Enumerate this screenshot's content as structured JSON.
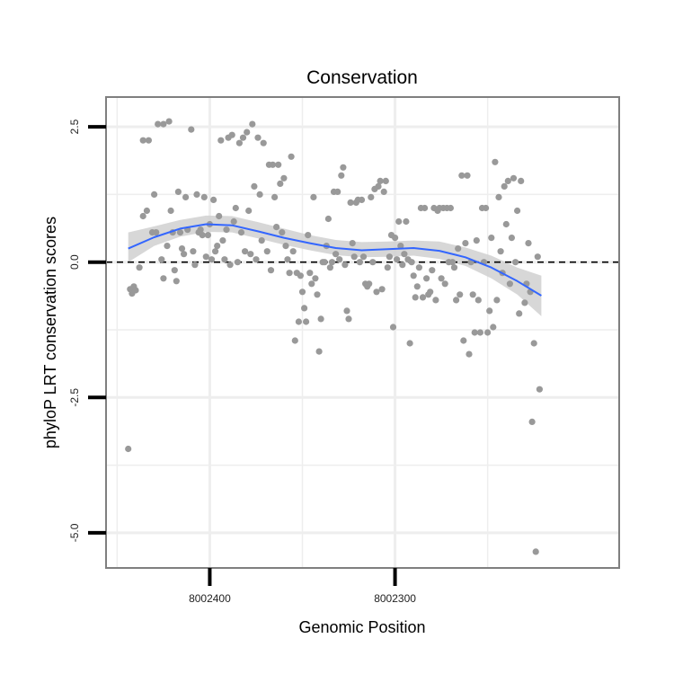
{
  "chart_data": {
    "type": "scatter",
    "title": "Conservation",
    "xlabel": "Genomic Position",
    "ylabel": "phyloP LRT conservation scores",
    "x_reversed": true,
    "xlim": [
      8002456,
      8002179
    ],
    "ylim": [
      -5.65,
      3.05
    ],
    "x_ticks": [
      8002400,
      8002300
    ],
    "x_tick_labels": [
      "8002400",
      "8002300"
    ],
    "y_ticks": [
      2.5,
      0.0,
      -2.5,
      -5.0
    ],
    "y_tick_labels": [
      "2.5",
      "0.0",
      "-2.5",
      "-5.0"
    ],
    "x_minor_gridlines": [
      8002450,
      8002350,
      8002250
    ],
    "y_minor_gridlines": [
      1.25,
      -1.25,
      -3.75
    ],
    "reference_line": {
      "y": 0,
      "style": "dashed",
      "color": "#000000"
    },
    "grid": true,
    "legend": "none",
    "colors": {
      "points": "#999999",
      "smooth_line": "#3366ff",
      "confidence_band": "#d0d0d0",
      "panel_border": "#7f7f7f",
      "gridline": "#eeeeee"
    },
    "points": [
      [
        8002444,
        -3.45
      ],
      [
        8002443,
        -0.5
      ],
      [
        8002442,
        -0.58
      ],
      [
        8002441,
        -0.45
      ],
      [
        8002440,
        -0.52
      ],
      [
        8002438,
        -0.1
      ],
      [
        8002436,
        0.85
      ],
      [
        8002436,
        2.25
      ],
      [
        8002434,
        0.95
      ],
      [
        8002433,
        2.25
      ],
      [
        8002431,
        0.55
      ],
      [
        8002430,
        1.25
      ],
      [
        8002429,
        0.55
      ],
      [
        8002428,
        2.55
      ],
      [
        8002426,
        0.05
      ],
      [
        8002425,
        -0.3
      ],
      [
        8002425,
        2.55
      ],
      [
        8002423,
        0.3
      ],
      [
        8002422,
        2.6
      ],
      [
        8002421,
        0.95
      ],
      [
        8002420,
        0.55
      ],
      [
        8002419,
        -0.15
      ],
      [
        8002418,
        -0.35
      ],
      [
        8002417,
        1.3
      ],
      [
        8002416,
        0.55
      ],
      [
        8002415,
        0.25
      ],
      [
        8002414,
        0.15
      ],
      [
        8002413,
        1.2
      ],
      [
        8002412,
        0.6
      ],
      [
        8002410,
        2.45
      ],
      [
        8002409,
        0.2
      ],
      [
        8002408,
        -0.05
      ],
      [
        8002407,
        1.25
      ],
      [
        8002406,
        0.55
      ],
      [
        8002405,
        0.6
      ],
      [
        8002404,
        0.5
      ],
      [
        8002403,
        1.2
      ],
      [
        8002402,
        0.1
      ],
      [
        8002401,
        0.5
      ],
      [
        8002400,
        0.7
      ],
      [
        8002399,
        0.05
      ],
      [
        8002398,
        1.15
      ],
      [
        8002397,
        0.2
      ],
      [
        8002396,
        0.3
      ],
      [
        8002395,
        0.85
      ],
      [
        8002394,
        2.25
      ],
      [
        8002393,
        0.4
      ],
      [
        8002392,
        0.05
      ],
      [
        8002391,
        0.6
      ],
      [
        8002390,
        2.3
      ],
      [
        8002389,
        -0.05
      ],
      [
        8002388,
        2.35
      ],
      [
        8002387,
        0.75
      ],
      [
        8002386,
        1.0
      ],
      [
        8002385,
        0.0
      ],
      [
        8002384,
        2.2
      ],
      [
        8002383,
        0.55
      ],
      [
        8002382,
        2.3
      ],
      [
        8002381,
        0.2
      ],
      [
        8002380,
        2.4
      ],
      [
        8002379,
        0.95
      ],
      [
        8002378,
        0.15
      ],
      [
        8002377,
        2.55
      ],
      [
        8002376,
        1.4
      ],
      [
        8002375,
        0.05
      ],
      [
        8002374,
        2.3
      ],
      [
        8002373,
        1.25
      ],
      [
        8002372,
        0.4
      ],
      [
        8002371,
        2.2
      ],
      [
        8002369,
        0.2
      ],
      [
        8002368,
        1.8
      ],
      [
        8002367,
        -0.15
      ],
      [
        8002366,
        1.8
      ],
      [
        8002365,
        1.2
      ],
      [
        8002364,
        0.65
      ],
      [
        8002363,
        1.8
      ],
      [
        8002362,
        1.45
      ],
      [
        8002361,
        0.55
      ],
      [
        8002360,
        1.55
      ],
      [
        8002359,
        0.3
      ],
      [
        8002358,
        0.05
      ],
      [
        8002357,
        -0.2
      ],
      [
        8002356,
        1.95
      ],
      [
        8002355,
        0.2
      ],
      [
        8002354,
        -1.45
      ],
      [
        8002353,
        -0.2
      ],
      [
        8002352,
        -1.1
      ],
      [
        8002351,
        -0.25
      ],
      [
        8002350,
        -0.55
      ],
      [
        8002349,
        -0.85
      ],
      [
        8002348,
        -1.1
      ],
      [
        8002347,
        0.5
      ],
      [
        8002346,
        -0.2
      ],
      [
        8002345,
        -0.4
      ],
      [
        8002344,
        1.2
      ],
      [
        8002343,
        -0.3
      ],
      [
        8002342,
        -0.6
      ],
      [
        8002341,
        -1.65
      ],
      [
        8002340,
        -1.05
      ],
      [
        8002339,
        0.0
      ],
      [
        8002338,
        0.0
      ],
      [
        8002337,
        0.3
      ],
      [
        8002336,
        0.8
      ],
      [
        8002335,
        -0.1
      ],
      [
        8002334,
        0.0
      ],
      [
        8002333,
        1.3
      ],
      [
        8002332,
        0.15
      ],
      [
        8002331,
        1.3
      ],
      [
        8002330,
        0.05
      ],
      [
        8002329,
        1.6
      ],
      [
        8002328,
        1.75
      ],
      [
        8002327,
        -0.05
      ],
      [
        8002326,
        -0.9
      ],
      [
        8002325,
        -1.05
      ],
      [
        8002324,
        1.1
      ],
      [
        8002323,
        0.35
      ],
      [
        8002322,
        0.1
      ],
      [
        8002321,
        1.1
      ],
      [
        8002320,
        1.15
      ],
      [
        8002319,
        0.0
      ],
      [
        8002318,
        1.15
      ],
      [
        8002317,
        0.1
      ],
      [
        8002316,
        -0.4
      ],
      [
        8002315,
        -0.45
      ],
      [
        8002314,
        -0.4
      ],
      [
        8002313,
        1.2
      ],
      [
        8002312,
        0.0
      ],
      [
        8002311,
        1.35
      ],
      [
        8002310,
        -0.55
      ],
      [
        8002309,
        1.4
      ],
      [
        8002308,
        1.5
      ],
      [
        8002307,
        -0.5
      ],
      [
        8002306,
        1.3
      ],
      [
        8002305,
        1.5
      ],
      [
        8002304,
        -0.1
      ],
      [
        8002303,
        0.1
      ],
      [
        8002302,
        0.5
      ],
      [
        8002301,
        -1.2
      ],
      [
        8002300,
        0.45
      ],
      [
        8002299,
        0.05
      ],
      [
        8002298,
        0.75
      ],
      [
        8002297,
        0.3
      ],
      [
        8002296,
        -0.05
      ],
      [
        8002295,
        0.15
      ],
      [
        8002294,
        0.75
      ],
      [
        8002293,
        0.05
      ],
      [
        8002292,
        -1.5
      ],
      [
        8002291,
        0.0
      ],
      [
        8002290,
        -0.25
      ],
      [
        8002289,
        -0.65
      ],
      [
        8002288,
        -0.45
      ],
      [
        8002287,
        -0.1
      ],
      [
        8002286,
        1.0
      ],
      [
        8002285,
        -0.65
      ],
      [
        8002284,
        1.0
      ],
      [
        8002283,
        -0.3
      ],
      [
        8002282,
        -0.6
      ],
      [
        8002281,
        -0.55
      ],
      [
        8002280,
        -0.15
      ],
      [
        8002279,
        1.0
      ],
      [
        8002278,
        -0.7
      ],
      [
        8002277,
        0.95
      ],
      [
        8002276,
        1.0
      ],
      [
        8002275,
        -0.3
      ],
      [
        8002274,
        1.0
      ],
      [
        8002273,
        -0.4
      ],
      [
        8002272,
        1.0
      ],
      [
        8002271,
        0.0
      ],
      [
        8002270,
        1.0
      ],
      [
        8002269,
        0.0
      ],
      [
        8002268,
        -0.1
      ],
      [
        8002267,
        -0.7
      ],
      [
        8002266,
        0.25
      ],
      [
        8002265,
        -0.6
      ],
      [
        8002264,
        1.6
      ],
      [
        8002263,
        -1.45
      ],
      [
        8002262,
        0.35
      ],
      [
        8002261,
        1.6
      ],
      [
        8002260,
        -1.7
      ],
      [
        8002259,
        0.0
      ],
      [
        8002258,
        -0.6
      ],
      [
        8002257,
        -1.3
      ],
      [
        8002256,
        0.4
      ],
      [
        8002255,
        -0.7
      ],
      [
        8002254,
        -1.3
      ],
      [
        8002253,
        1.0
      ],
      [
        8002252,
        0.0
      ],
      [
        8002251,
        1.0
      ],
      [
        8002250,
        -1.3
      ],
      [
        8002249,
        -0.9
      ],
      [
        8002248,
        0.45
      ],
      [
        8002247,
        -1.2
      ],
      [
        8002246,
        1.85
      ],
      [
        8002245,
        -0.7
      ],
      [
        8002244,
        1.2
      ],
      [
        8002243,
        0.2
      ],
      [
        8002242,
        -0.2
      ],
      [
        8002241,
        1.4
      ],
      [
        8002240,
        0.7
      ],
      [
        8002239,
        1.5
      ],
      [
        8002238,
        -0.4
      ],
      [
        8002237,
        0.45
      ],
      [
        8002236,
        1.55
      ],
      [
        8002235,
        0.0
      ],
      [
        8002234,
        0.95
      ],
      [
        8002233,
        -0.95
      ],
      [
        8002232,
        1.5
      ],
      [
        8002230,
        -0.75
      ],
      [
        8002229,
        -0.4
      ],
      [
        8002228,
        0.35
      ],
      [
        8002227,
        -0.55
      ],
      [
        8002226,
        -2.95
      ],
      [
        8002225,
        -1.5
      ],
      [
        8002224,
        -5.35
      ],
      [
        8002223,
        0.1
      ],
      [
        8002222,
        -2.35
      ]
    ],
    "smooth_line": [
      [
        8002444,
        0.25
      ],
      [
        8002430,
        0.46
      ],
      [
        8002416,
        0.62
      ],
      [
        8002402,
        0.7
      ],
      [
        8002388,
        0.68
      ],
      [
        8002374,
        0.57
      ],
      [
        8002360,
        0.45
      ],
      [
        8002346,
        0.35
      ],
      [
        8002332,
        0.26
      ],
      [
        8002318,
        0.22
      ],
      [
        8002304,
        0.24
      ],
      [
        8002290,
        0.26
      ],
      [
        8002276,
        0.21
      ],
      [
        8002262,
        0.09
      ],
      [
        8002248,
        -0.1
      ],
      [
        8002234,
        -0.35
      ],
      [
        8002221,
        -0.62
      ]
    ],
    "confidence_band": [
      [
        8002444,
        0.0,
        0.55
      ],
      [
        8002430,
        0.3,
        0.66
      ],
      [
        8002416,
        0.47,
        0.78
      ],
      [
        8002402,
        0.56,
        0.86
      ],
      [
        8002388,
        0.55,
        0.85
      ],
      [
        8002374,
        0.44,
        0.74
      ],
      [
        8002360,
        0.32,
        0.62
      ],
      [
        8002346,
        0.22,
        0.5
      ],
      [
        8002332,
        0.13,
        0.41
      ],
      [
        8002318,
        0.09,
        0.37
      ],
      [
        8002304,
        0.1,
        0.38
      ],
      [
        8002290,
        0.12,
        0.4
      ],
      [
        8002276,
        0.06,
        0.38
      ],
      [
        8002262,
        -0.07,
        0.27
      ],
      [
        8002248,
        -0.3,
        0.12
      ],
      [
        8002234,
        -0.6,
        -0.1
      ],
      [
        8002221,
        -1.0,
        -0.25
      ]
    ]
  }
}
